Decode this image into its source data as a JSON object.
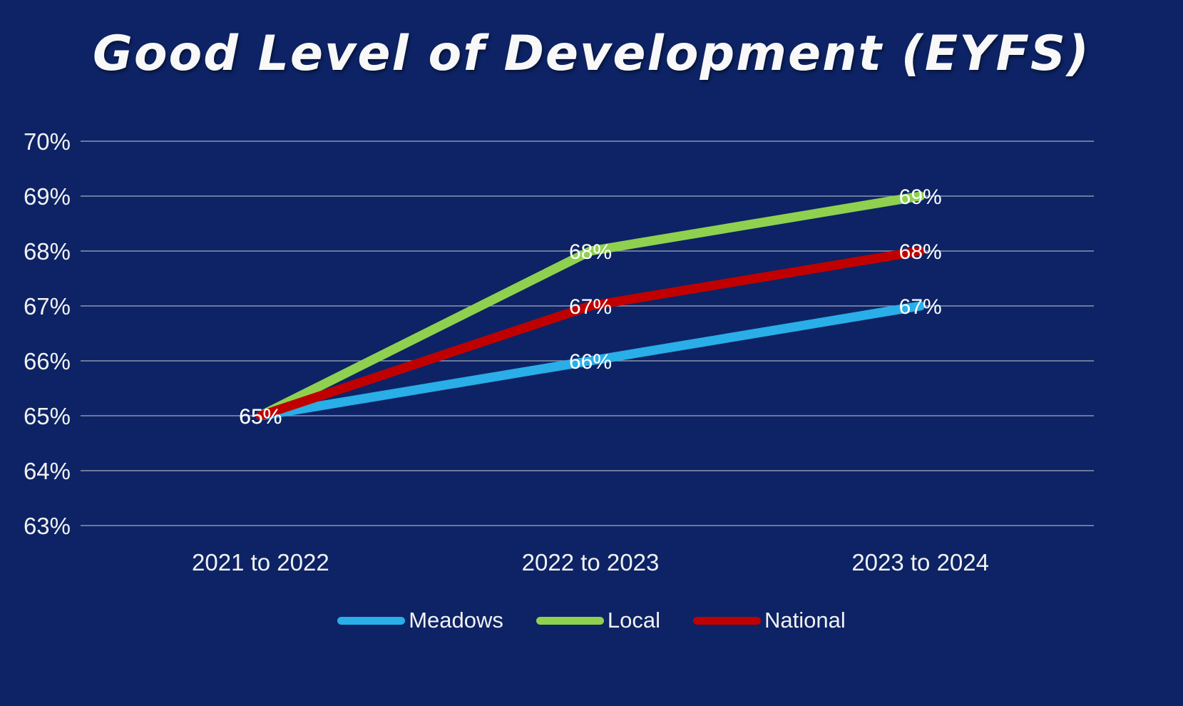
{
  "title": "Good Level of Development (EYFS)",
  "colors": {
    "background": "#0d2365",
    "gridline": "#8c96ae",
    "text": "#f2f2f2",
    "data_label": "#ffffff"
  },
  "chart_data": {
    "type": "line",
    "title": "Good Level of Development (EYFS)",
    "categories": [
      "2021 to 2022",
      "2022 to 2023",
      "2023 to 2024"
    ],
    "series": [
      {
        "name": "Meadows",
        "values": [
          65,
          66,
          67
        ],
        "color": "#29aee8"
      },
      {
        "name": "Local",
        "values": [
          65,
          68,
          69
        ],
        "color": "#8fd14f"
      },
      {
        "name": "National",
        "values": [
          65,
          67,
          68
        ],
        "color": "#c00000"
      }
    ],
    "data_labels": {
      "meadows": [
        "65%",
        "66%",
        "67%"
      ],
      "local": [
        "65%",
        "68%",
        "69%"
      ],
      "national": [
        "65%",
        "67%",
        "68%"
      ]
    },
    "xlabel": "",
    "ylabel": "",
    "ylim": [
      63,
      70
    ],
    "ytick_step": 1,
    "ytick_suffix": "%",
    "ytick_labels": [
      "70%",
      "69%",
      "68%",
      "67%",
      "66%",
      "65%",
      "64%",
      "63%"
    ],
    "grid": true,
    "legend_position": "bottom",
    "legend_entries": [
      "Meadows",
      "Local",
      "National"
    ]
  }
}
